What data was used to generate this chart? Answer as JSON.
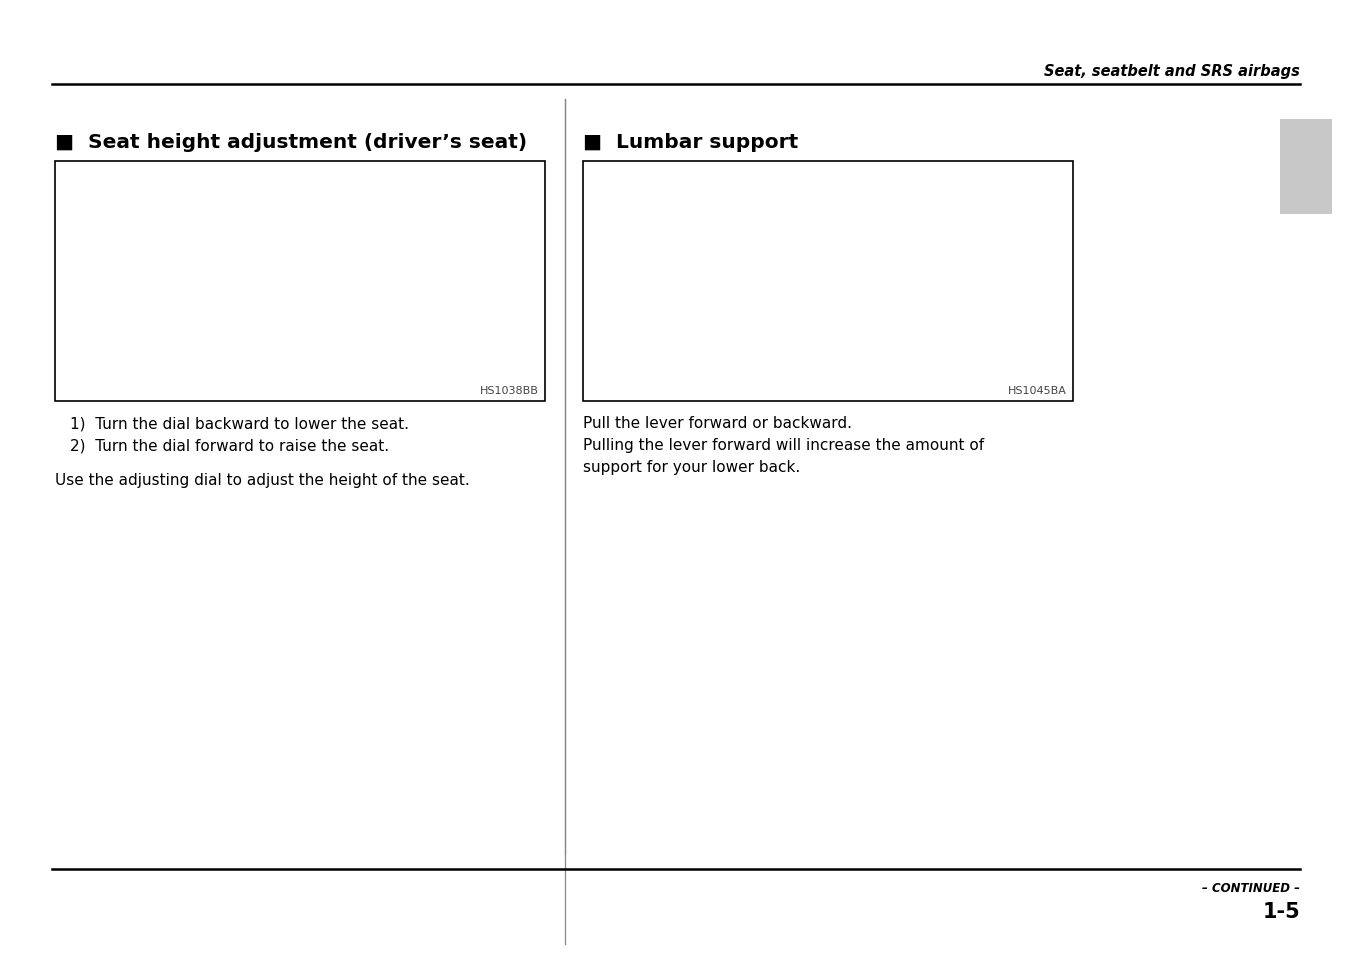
{
  "page_header": "Seat, seatbelt and SRS airbags",
  "page_number": "1-5",
  "continued_text": "– CONTINUED –",
  "left_section": {
    "title": "Seat height adjustment (driver’s seat)",
    "image_code": "HS1038BB",
    "instructions": [
      "1)  Turn the dial backward to lower the seat.",
      "2)  Turn the dial forward to raise the seat."
    ],
    "body_text": "Use the adjusting dial to adjust the height of the seat."
  },
  "right_section": {
    "title": "Lumbar support",
    "image_code": "HS1045BA",
    "body_lines": [
      "Pull the lever forward or backward.",
      "Pulling the lever forward will increase the amount of",
      "support for your lower back."
    ]
  },
  "bg_color": "#ffffff",
  "text_color": "#000000",
  "gray_tab_color": "#c8c8c8",
  "box_edge_color": "#000000",
  "divider_color": "#888888",
  "header_fontsize": 10.5,
  "title_fontsize": 14.5,
  "body_fontsize": 11,
  "code_fontsize": 8,
  "page_num_fontsize": 15,
  "continued_fontsize": 8.5
}
